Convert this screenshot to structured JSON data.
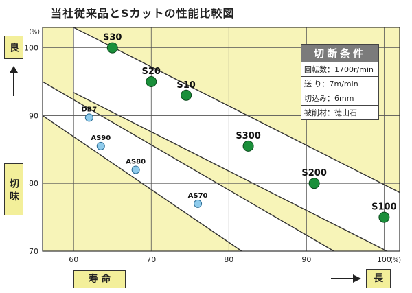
{
  "title": "当社従来品とSカットの性能比較図",
  "ylabel_text": "切 味",
  "ylabel_good": "良",
  "xlabel_text": "寿 命",
  "xlabel_long": "長",
  "y_unit": "(%)",
  "x_unit": "(%)",
  "conditions": {
    "heading": "切断条件",
    "rows": [
      "回転数：1700r/min",
      "送 り：7m/min",
      "切込み：6mm",
      "被削材：徳山石"
    ]
  },
  "colors": {
    "background": "#f7f4b8",
    "band": "#ffffff",
    "s_marker": "#1a8f3a",
    "conventional_marker": "#8ecbec",
    "label_box": "#f3ef9a"
  },
  "chart_data": {
    "type": "scatter",
    "title": "当社従来品とSカットの性能比較図",
    "xlabel": "寿命",
    "ylabel": "切味",
    "xlim": [
      56,
      102
    ],
    "ylim": [
      70,
      103
    ],
    "x_ticks": [
      60,
      70,
      80,
      90,
      100
    ],
    "y_ticks": [
      70,
      80,
      90,
      100
    ],
    "grid": true,
    "series": [
      {
        "points": [
          {
            "label": "S30",
            "x": 65,
            "y": 100
          },
          {
            "label": "S20",
            "x": 70,
            "y": 95
          },
          {
            "label": "S10",
            "x": 74.5,
            "y": 93
          },
          {
            "label": "S300",
            "x": 82.5,
            "y": 85.5
          },
          {
            "label": "S200",
            "x": 91,
            "y": 80
          },
          {
            "label": "S100",
            "x": 100,
            "y": 75
          }
        ]
      },
      {
        "points": [
          {
            "label": "DB7",
            "x": 62,
            "y": 89.7
          },
          {
            "label": "AS90",
            "x": 63.5,
            "y": 85.5
          },
          {
            "label": "AS80",
            "x": 68,
            "y": 82
          },
          {
            "label": "AS70",
            "x": 76,
            "y": 77
          }
        ]
      }
    ]
  }
}
